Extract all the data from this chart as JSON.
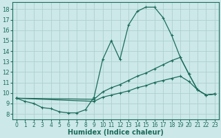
{
  "xlabel": "Humidex (Indice chaleur)",
  "background_color": "#cce8e8",
  "grid_color": "#afd0d0",
  "line_color": "#1a6b5a",
  "xlim": [
    -0.5,
    23.5
  ],
  "ylim": [
    7.5,
    18.7
  ],
  "xticks": [
    0,
    1,
    2,
    3,
    4,
    5,
    6,
    7,
    8,
    9,
    10,
    11,
    12,
    13,
    14,
    15,
    16,
    17,
    18,
    19,
    20,
    21,
    22,
    23
  ],
  "yticks": [
    8,
    9,
    10,
    11,
    12,
    13,
    14,
    15,
    16,
    17,
    18
  ],
  "line1_x": [
    0,
    1,
    2,
    3,
    4,
    5,
    6,
    7,
    8,
    9,
    10,
    11,
    12,
    13,
    14,
    15,
    16,
    17,
    18,
    19,
    20,
    21,
    22,
    23
  ],
  "line1_y": [
    9.5,
    9.2,
    9.0,
    8.6,
    8.5,
    8.2,
    8.1,
    8.1,
    8.4,
    9.6,
    13.2,
    15.0,
    13.2,
    16.5,
    17.8,
    18.2,
    18.2,
    17.2,
    15.5,
    13.4,
    11.8,
    10.3,
    9.8,
    9.9
  ],
  "line2_x": [
    0,
    9,
    10,
    11,
    12,
    13,
    14,
    15,
    16,
    17,
    18,
    19,
    20,
    21,
    22,
    23
  ],
  "line2_y": [
    9.5,
    9.4,
    10.1,
    10.5,
    10.8,
    11.2,
    11.6,
    11.9,
    12.3,
    12.7,
    13.1,
    13.4,
    11.8,
    10.3,
    9.8,
    9.9
  ],
  "line3_x": [
    0,
    9,
    10,
    11,
    12,
    13,
    14,
    15,
    16,
    17,
    18,
    19,
    20,
    21,
    22,
    23
  ],
  "line3_y": [
    9.5,
    9.2,
    9.6,
    9.8,
    10.0,
    10.2,
    10.5,
    10.7,
    11.0,
    11.2,
    11.4,
    11.6,
    11.1,
    10.3,
    9.8,
    9.9
  ]
}
